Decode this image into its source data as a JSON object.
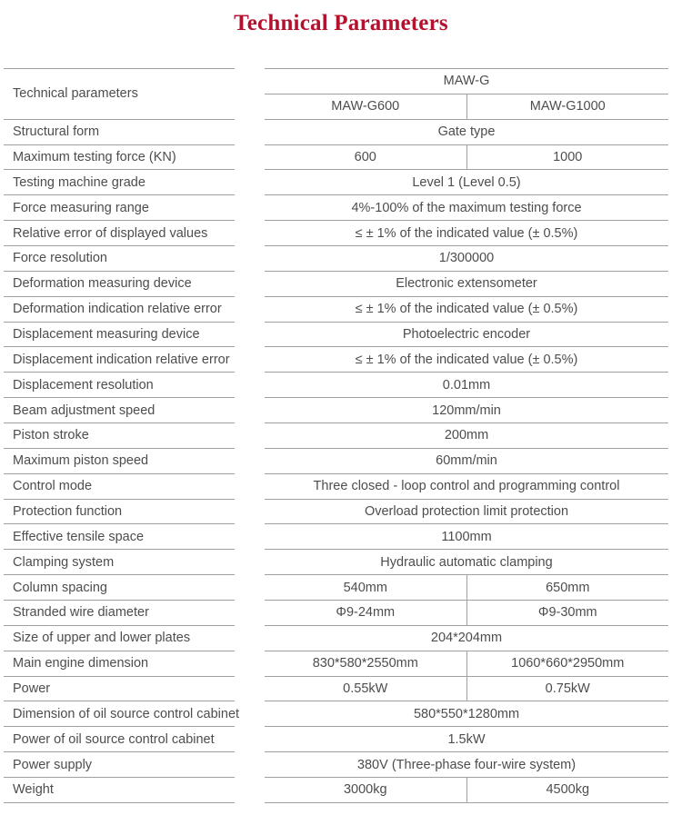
{
  "title": "Technical Parameters",
  "colors": {
    "title_accent": "#b3122f",
    "body_text": "#4d4d4d",
    "rule_line": "#a0a0a0"
  },
  "table": {
    "corner_label": "Technical parameters",
    "header": {
      "family": "MAW-G",
      "models": [
        "MAW-G600",
        "MAW-G1000"
      ]
    },
    "rows": [
      {
        "label": "Structural form",
        "values": [
          "Gate type"
        ]
      },
      {
        "label": "Maximum testing force (KN)",
        "values": [
          "600",
          "1000"
        ]
      },
      {
        "label": "Testing machine grade",
        "values": [
          "Level 1 (Level 0.5)"
        ]
      },
      {
        "label": "Force measuring range",
        "values": [
          "4%-100% of the maximum testing force"
        ]
      },
      {
        "label": "Relative error of displayed values",
        "values": [
          "≤ ± 1% of the indicated value (± 0.5%)"
        ]
      },
      {
        "label": "Force resolution",
        "values": [
          "1/300000"
        ]
      },
      {
        "label": "Deformation measuring device",
        "values": [
          "Electronic extensometer"
        ]
      },
      {
        "label": "Deformation indication relative error",
        "values": [
          "≤ ± 1% of the indicated value (± 0.5%)"
        ]
      },
      {
        "label": "Displacement measuring device",
        "values": [
          "Photoelectric encoder"
        ]
      },
      {
        "label": "Displacement indication relative error",
        "values": [
          "≤ ± 1% of the indicated value (± 0.5%)"
        ]
      },
      {
        "label": "Displacement resolution",
        "values": [
          "0.01mm"
        ]
      },
      {
        "label": "Beam adjustment speed",
        "values": [
          "120mm/min"
        ]
      },
      {
        "label": "Piston stroke",
        "values": [
          "200mm"
        ]
      },
      {
        "label": "Maximum piston speed",
        "values": [
          "60mm/min"
        ]
      },
      {
        "label": "Control mode",
        "values": [
          "Three closed - loop control and programming control"
        ]
      },
      {
        "label": "Protection function",
        "values": [
          "Overload protection limit protection"
        ]
      },
      {
        "label": "Effective tensile space",
        "values": [
          "1100mm"
        ]
      },
      {
        "label": "Clamping system",
        "values": [
          "Hydraulic automatic clamping"
        ]
      },
      {
        "label": "Column spacing",
        "values": [
          "540mm",
          "650mm"
        ]
      },
      {
        "label": "Stranded wire diameter",
        "values": [
          "Φ9-24mm",
          "Φ9-30mm"
        ]
      },
      {
        "label": "Size of upper and lower plates",
        "values": [
          "204*204mm"
        ]
      },
      {
        "label": "Main engine dimension",
        "values": [
          "830*580*2550mm",
          "1060*660*2950mm"
        ]
      },
      {
        "label": "Power",
        "values": [
          "0.55kW",
          "0.75kW"
        ]
      },
      {
        "label": "Dimension of oil source control cabinet",
        "values": [
          "580*550*1280mm"
        ]
      },
      {
        "label": "Power of oil source control cabinet",
        "values": [
          "1.5kW"
        ]
      },
      {
        "label": "Power supply",
        "values": [
          "380V (Three-phase four-wire system)"
        ]
      },
      {
        "label": "Weight",
        "values": [
          "3000kg",
          "4500kg"
        ]
      }
    ]
  }
}
